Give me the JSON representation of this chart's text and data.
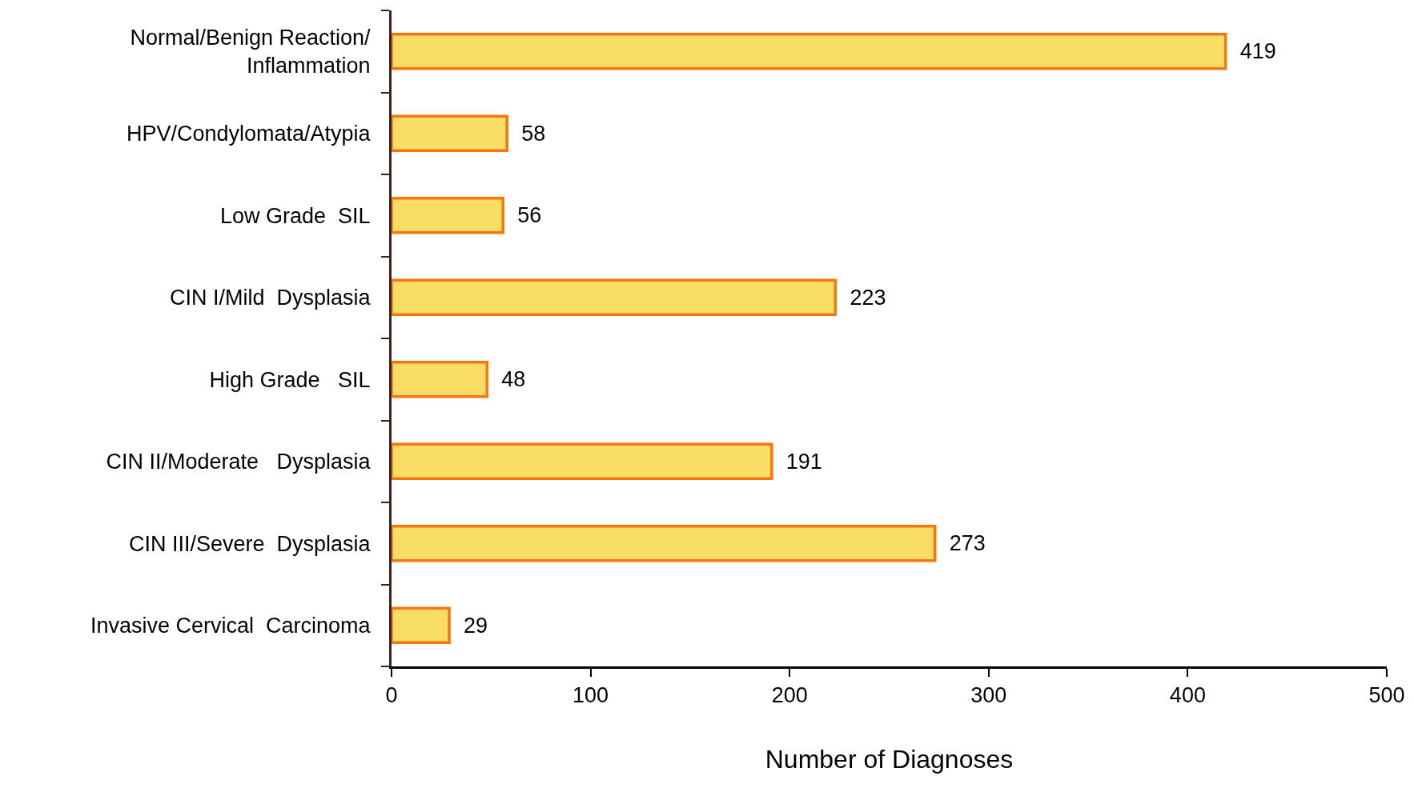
{
  "chart_data": {
    "type": "bar",
    "orientation": "horizontal",
    "xlabel": "Number of Diagnoses",
    "categories": [
      "Normal/Benign Reaction/\nInflammation",
      "HPV/Condylomata/Atypia",
      "Low Grade  SIL",
      "CIN I/Mild  Dysplasia",
      "High Grade   SIL",
      "CIN II/Moderate   Dysplasia",
      "CIN III/Severe  Dysplasia",
      "Invasive Cervical  Carcinoma"
    ],
    "values": [
      419,
      58,
      56,
      223,
      48,
      191,
      273,
      29
    ],
    "color": "#f9dc65",
    "xlim": [
      0,
      500
    ],
    "xticks": [
      0,
      100,
      200,
      300,
      400,
      500
    ],
    "legend": false,
    "data_labels": true
  }
}
